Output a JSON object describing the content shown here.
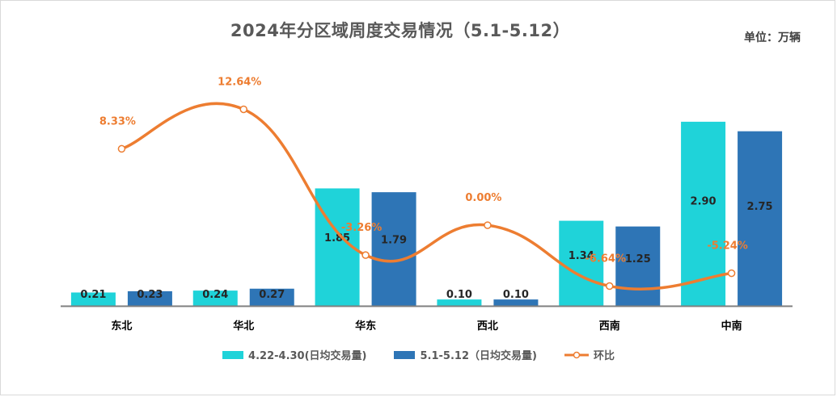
{
  "unit_label": "单位：万辆",
  "colors": {
    "series1": "#1fd3d9",
    "series2": "#2e75b6",
    "line": "#ed7d31"
  },
  "chart_data": {
    "type": "bar",
    "title": "2024年分区域周度交易情况（5.1-5.12）",
    "categories": [
      "东北",
      "华北",
      "华东",
      "西北",
      "西南",
      "中南"
    ],
    "series": [
      {
        "name": "4.22-4.30(日均交易量)",
        "values": [
          0.21,
          0.24,
          1.85,
          0.1,
          1.34,
          2.9
        ],
        "labels": [
          "0.21",
          "0.24",
          "1.85",
          "0.10",
          "1.34",
          "2.90"
        ]
      },
      {
        "name": "5.1-5.12（日均交易量)",
        "values": [
          0.23,
          0.27,
          1.79,
          0.1,
          1.25,
          2.75
        ],
        "labels": [
          "0.23",
          "0.27",
          "1.79",
          "0.10",
          "1.25",
          "2.75"
        ]
      }
    ],
    "line_series": {
      "name": "环比",
      "type": "line",
      "smooth": true,
      "values": [
        8.33,
        12.64,
        -3.26,
        0.0,
        -6.64,
        -5.24
      ],
      "labels": [
        "8.33%",
        "12.64%",
        "-3.26%",
        "0.00%",
        "-6.64%",
        "-5.24%"
      ]
    },
    "ylim": [
      0,
      3.0
    ],
    "grid": false,
    "legend_position": "bottom"
  }
}
